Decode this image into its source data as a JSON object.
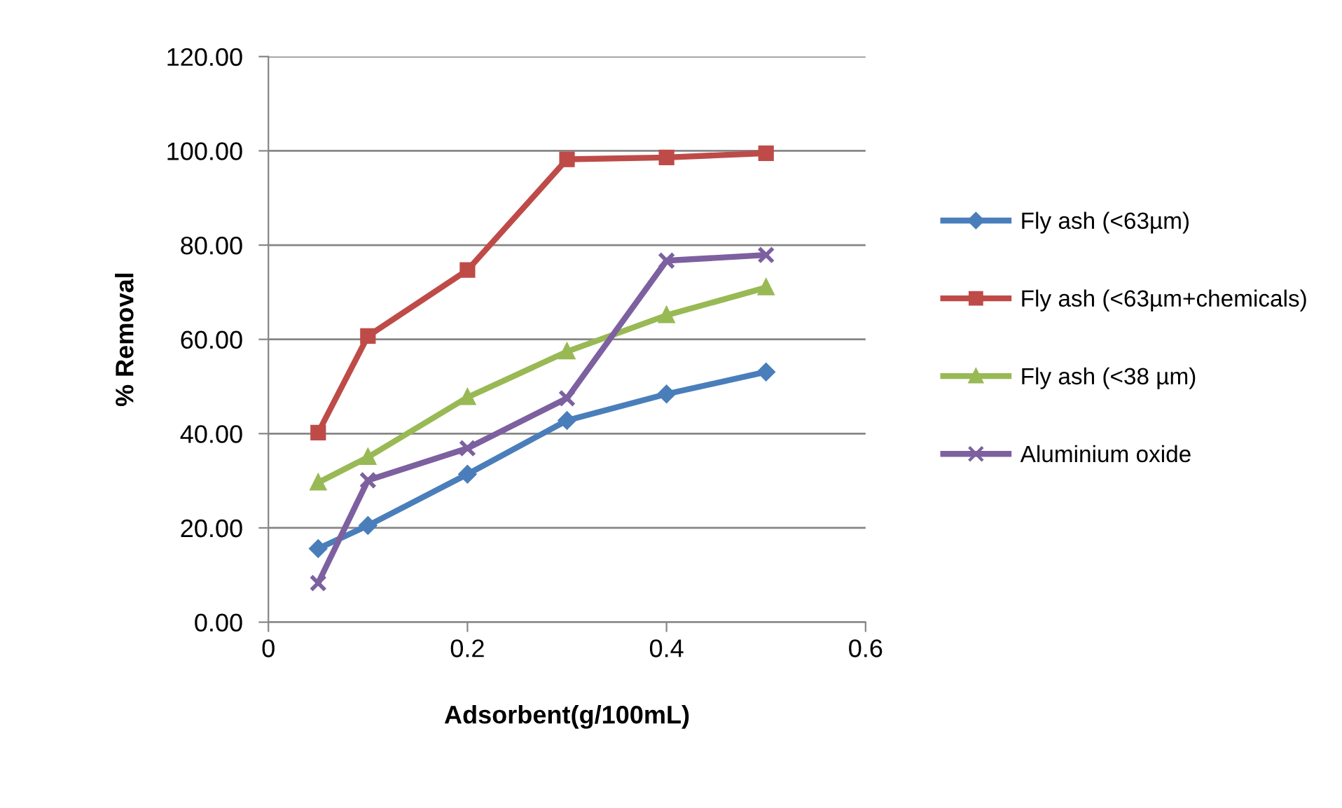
{
  "chart_data": {
    "type": "line",
    "xlabel": "Adsorbent(g/100mL)",
    "ylabel": "% Removal",
    "x": [
      0.05,
      0.1,
      0.2,
      0.3,
      0.4,
      0.5
    ],
    "series": [
      {
        "name": "Fly ash (<63µm)",
        "color": "#4a7ebb",
        "marker": "diamond",
        "values": [
          15.6,
          20.5,
          31.4,
          42.8,
          48.4,
          53.1
        ]
      },
      {
        "name": "Fly ash (<63µm+chemicals)",
        "color": "#be4b48",
        "marker": "square",
        "values": [
          40.2,
          60.7,
          74.7,
          98.2,
          98.6,
          99.5
        ]
      },
      {
        "name": "Fly ash (<38 µm)",
        "color": "#98b954",
        "marker": "triangle",
        "values": [
          29.6,
          35.0,
          47.7,
          57.4,
          65.1,
          71.0
        ]
      },
      {
        "name": "Aluminium oxide",
        "color": "#7d60a0",
        "marker": "cross",
        "values": [
          8.3,
          30.1,
          36.9,
          47.5,
          76.7,
          77.9
        ]
      }
    ],
    "xlim": [
      0,
      0.6
    ],
    "xticks": [
      0,
      0.2,
      0.4,
      0.6
    ],
    "ylim": [
      0,
      120
    ],
    "yticks": [
      {
        "value": 0,
        "label": "0.00"
      },
      {
        "value": 20,
        "label": "20.00"
      },
      {
        "value": 40,
        "label": "40.00"
      },
      {
        "value": 60,
        "label": "60.00"
      },
      {
        "value": 80,
        "label": "80.00"
      },
      {
        "value": 100,
        "label": "100.00"
      },
      {
        "value": 120,
        "label": "120.00"
      }
    ],
    "grid": "y",
    "legend": "right",
    "line_style": "solid"
  }
}
